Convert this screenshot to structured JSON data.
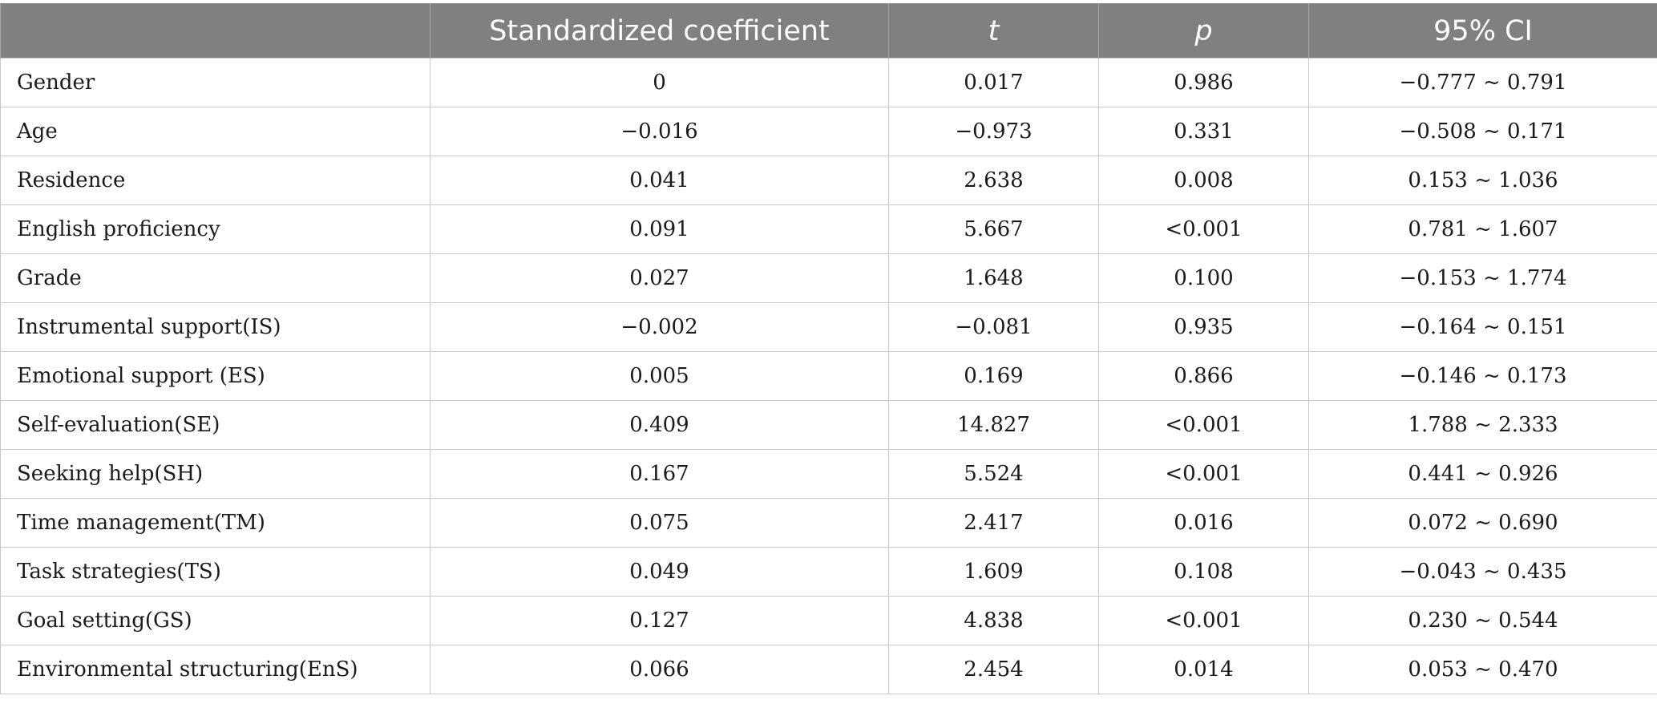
{
  "table": {
    "headers": [
      "",
      "Standardized coefficient",
      "t",
      "p",
      "95% CI"
    ],
    "rows": [
      [
        "Gender",
        "0",
        "0.017",
        "0.986",
        "−0.777 ~ 0.791"
      ],
      [
        "Age",
        "−0.016",
        "−0.973",
        "0.331",
        "−0.508 ~ 0.171"
      ],
      [
        "Residence",
        "0.041",
        "2.638",
        "0.008",
        "0.153 ~ 1.036"
      ],
      [
        "English proficiency",
        "0.091",
        "5.667",
        "<0.001",
        "0.781 ~ 1.607"
      ],
      [
        "Grade",
        "0.027",
        "1.648",
        "0.100",
        "−0.153 ~ 1.774"
      ],
      [
        "Instrumental support(IS)",
        "−0.002",
        "−0.081",
        "0.935",
        "−0.164 ~ 0.151"
      ],
      [
        "Emotional support (ES)",
        "0.005",
        "0.169",
        "0.866",
        "−0.146 ~ 0.173"
      ],
      [
        "Self-evaluation(SE)",
        "0.409",
        "14.827",
        "<0.001",
        "1.788 ~ 2.333"
      ],
      [
        "Seeking help(SH)",
        "0.167",
        "5.524",
        "<0.001",
        "0.441 ~ 0.926"
      ],
      [
        "Time management(TM)",
        "0.075",
        "2.417",
        "0.016",
        "0.072 ~ 0.690"
      ],
      [
        "Task strategies(TS)",
        "0.049",
        "1.609",
        "0.108",
        "−0.043 ~ 0.435"
      ],
      [
        "Goal setting(GS)",
        "0.127",
        "4.838",
        "<0.001",
        "0.230 ~ 0.544"
      ],
      [
        "Environmental structuring(EnS)",
        "0.066",
        "2.454",
        "0.014",
        "0.053 ~ 0.470"
      ]
    ]
  },
  "colors": {
    "header_bg": "#808080",
    "header_text": "#ffffff",
    "grid": "#c8c8c8"
  }
}
